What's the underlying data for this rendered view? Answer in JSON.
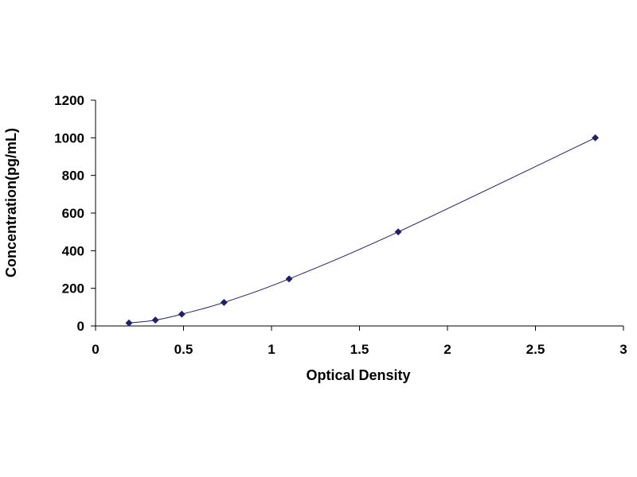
{
  "chart_data": {
    "type": "scatter",
    "title": "",
    "xlabel": "Optical Density",
    "ylabel": "Concentration(pg/mL)",
    "xlim": [
      0,
      3
    ],
    "ylim": [
      0,
      1200
    ],
    "x_ticks": [
      "0",
      "0.5",
      "1",
      "1.5",
      "2",
      "2.5",
      "3"
    ],
    "y_ticks": [
      "0",
      "200",
      "400",
      "600",
      "800",
      "1000",
      "1200"
    ],
    "grid": false,
    "legend": "none",
    "trendline": "smooth curve through points",
    "marker": "diamond",
    "color": "#1f1f6e",
    "series": [
      {
        "x": [
          0.19,
          0.34,
          0.49,
          0.73,
          1.1,
          1.72,
          2.84
        ],
        "y": [
          15.6,
          31.2,
          62.5,
          125,
          250,
          500,
          1000
        ]
      }
    ]
  }
}
